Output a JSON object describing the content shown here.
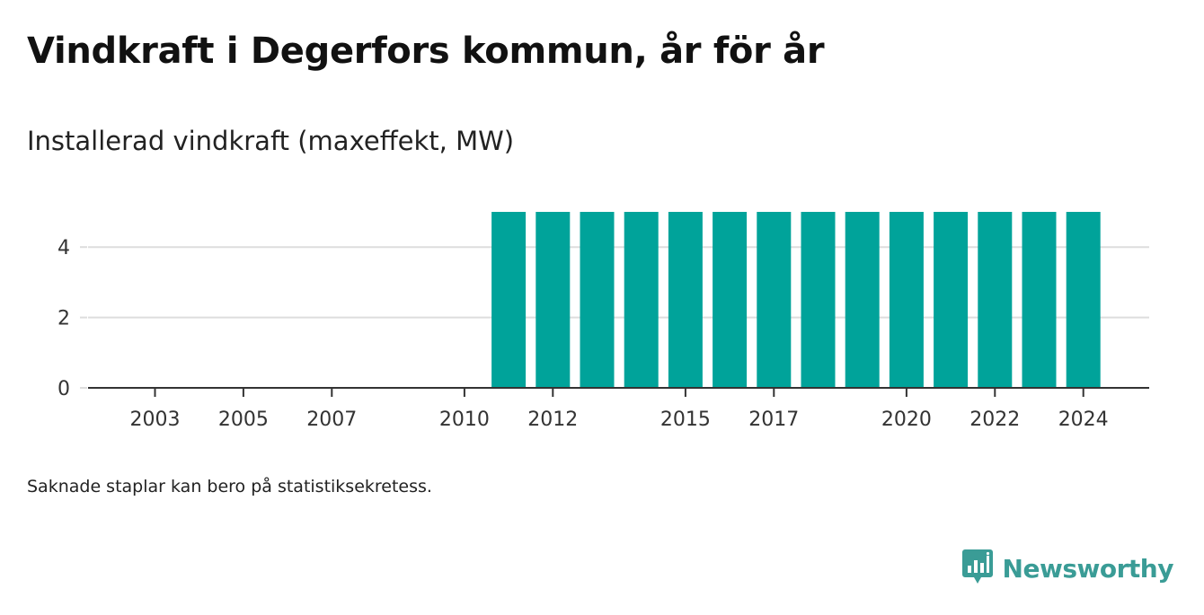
{
  "header": {
    "title": "Vindkraft i Degerfors kommun, år för år",
    "subtitle": "Installerad vindkraft (maxeffekt, MW)"
  },
  "footer": {
    "note": "Saknade staplar kan bero på statistiksekretess.",
    "brand": "Newsworthy"
  },
  "colors": {
    "bar": "#00a39a",
    "grid": "#dddddd",
    "axis": "#333333",
    "brand": "#3a9c96"
  },
  "icons": {
    "brand_logo": "newsworthy-logo-icon"
  },
  "chart_data": {
    "type": "bar",
    "title": "Vindkraft i Degerfors kommun, år för år",
    "subtitle": "Installerad vindkraft (maxeffekt, MW)",
    "xlabel": "",
    "ylabel": "",
    "categories": [
      2002,
      2003,
      2004,
      2005,
      2006,
      2007,
      2008,
      2009,
      2010,
      2011,
      2012,
      2013,
      2014,
      2015,
      2016,
      2017,
      2018,
      2019,
      2020,
      2021,
      2022,
      2023,
      2024
    ],
    "values": [
      0,
      0,
      0,
      0,
      0,
      0,
      0,
      0,
      0,
      5,
      5,
      5,
      5,
      5,
      5,
      5,
      5,
      5,
      5,
      5,
      5,
      5,
      5
    ],
    "x_tick_labels": [
      "2003",
      "2005",
      "2007",
      "2010",
      "2012",
      "2015",
      "2017",
      "2020",
      "2022",
      "2024"
    ],
    "y_ticks": [
      0,
      2,
      4
    ],
    "ylim": [
      0,
      5
    ],
    "grid": true,
    "legend": "none"
  }
}
